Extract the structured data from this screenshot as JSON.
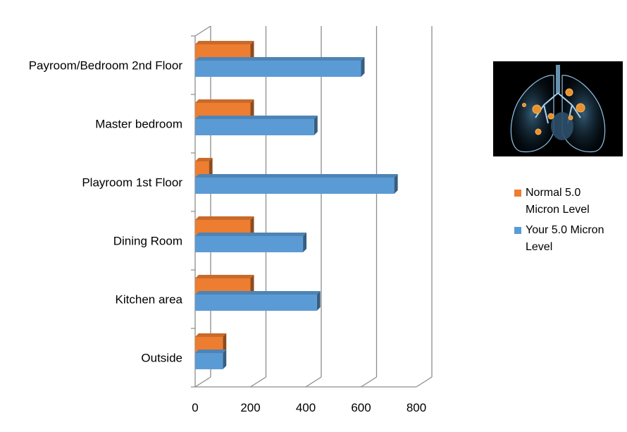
{
  "chart_data": {
    "type": "bar",
    "orientation": "horizontal",
    "categories": [
      "Payroom/Bedroom 2nd Floor",
      "Master bedroom",
      "Playroom 1st Floor",
      "Dining Room",
      "Kitchen area",
      "Outside"
    ],
    "series": [
      {
        "name": "Normal 5.0 Micron Level",
        "color": "#ED7D31",
        "values": [
          200,
          200,
          50,
          200,
          200,
          100
        ]
      },
      {
        "name": "Your 5.0 Micron Level",
        "color": "#5B9BD5",
        "values": [
          600,
          430,
          720,
          390,
          440,
          100
        ]
      }
    ],
    "xlim": [
      0,
      800
    ],
    "xticks": [
      "0",
      "200",
      "400",
      "600",
      "800"
    ],
    "grid": true,
    "legend_position": "right"
  },
  "legend": {
    "items": [
      {
        "lines": [
          "Normal 5.0",
          "Micron Level"
        ],
        "color": "#ED7D31"
      },
      {
        "lines": [
          "Your 5.0 Micron",
          "Level"
        ],
        "color": "#5B9BD5"
      }
    ]
  },
  "image": {
    "icon": "lungs-image"
  }
}
